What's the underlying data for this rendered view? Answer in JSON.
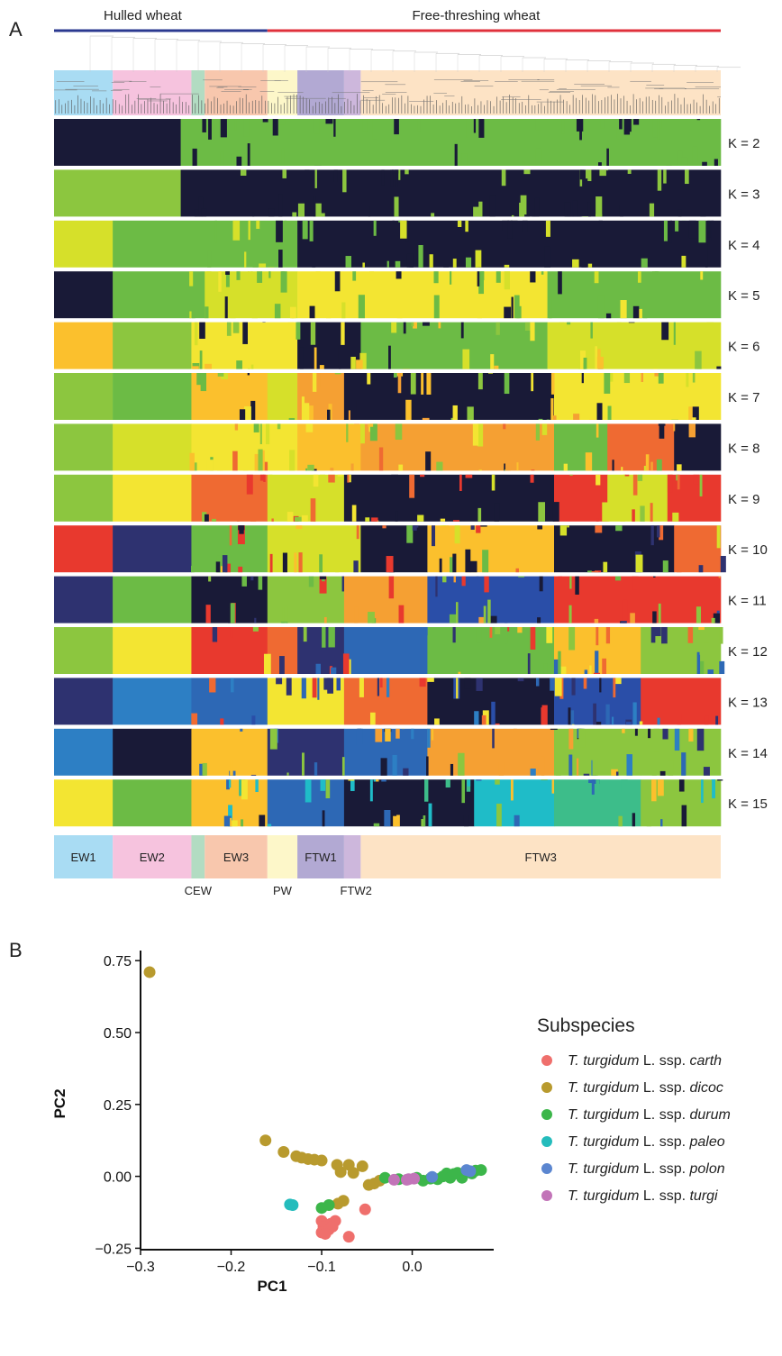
{
  "panel_a": {
    "label": "A",
    "groups": [
      {
        "label": "Hulled wheat",
        "color": "#2b3990",
        "start": 0.0,
        "end": 0.32
      },
      {
        "label": "Free-threshing wheat",
        "color": "#e0313c",
        "start": 0.32,
        "end": 1.0
      }
    ],
    "clusters": [
      {
        "label": "EW1",
        "start": 0.0,
        "end": 0.088,
        "color": "#a9dcf3",
        "label_below": false
      },
      {
        "label": "EW2",
        "start": 0.088,
        "end": 0.206,
        "color": "#f6c3de",
        "label_below": false
      },
      {
        "label": "CEW",
        "start": 0.206,
        "end": 0.226,
        "color": "#b2dcc2",
        "label_below": true
      },
      {
        "label": "EW3",
        "start": 0.226,
        "end": 0.32,
        "color": "#f8c7ad",
        "label_below": false
      },
      {
        "label": "PW",
        "start": 0.32,
        "end": 0.365,
        "color": "#fdf7c9",
        "label_below": true
      },
      {
        "label": "FTW1",
        "start": 0.365,
        "end": 0.435,
        "color": "#b2a9d3",
        "label_below": false
      },
      {
        "label": "FTW2",
        "start": 0.435,
        "end": 0.46,
        "color": "#cdb7dc",
        "label_below": true
      },
      {
        "label": "FTW3",
        "start": 0.46,
        "end": 1.0,
        "color": "#fde3c5",
        "label_below": false
      }
    ],
    "structure": [
      {
        "k": "K = 2",
        "segments": [
          [
            0.0,
            0.19,
            "#191a37"
          ],
          [
            0.19,
            1.0,
            "#6cbb45"
          ]
        ]
      },
      {
        "k": "K = 3",
        "segments": [
          [
            0.0,
            0.19,
            "#8cc63f"
          ],
          [
            0.19,
            1.0,
            "#191a37"
          ]
        ]
      },
      {
        "k": "K = 4",
        "segments": [
          [
            0.0,
            0.088,
            "#d6e02a"
          ],
          [
            0.088,
            0.365,
            "#6cbb45"
          ],
          [
            0.365,
            1.0,
            "#191a37"
          ]
        ]
      },
      {
        "k": "K = 5",
        "segments": [
          [
            0.0,
            0.088,
            "#191a37"
          ],
          [
            0.088,
            0.226,
            "#6cbb45"
          ],
          [
            0.226,
            0.365,
            "#d6e02a"
          ],
          [
            0.365,
            0.74,
            "#f3e532"
          ],
          [
            0.74,
            1.0,
            "#6cbb45"
          ]
        ]
      },
      {
        "k": "K = 6",
        "segments": [
          [
            0.0,
            0.088,
            "#fbc02d"
          ],
          [
            0.088,
            0.206,
            "#8cc63f"
          ],
          [
            0.206,
            0.365,
            "#f3e532"
          ],
          [
            0.365,
            0.46,
            "#191a37"
          ],
          [
            0.46,
            0.74,
            "#6cbb45"
          ],
          [
            0.74,
            1.0,
            "#d6e02a"
          ]
        ]
      },
      {
        "k": "K = 7",
        "segments": [
          [
            0.0,
            0.088,
            "#8cc63f"
          ],
          [
            0.088,
            0.206,
            "#6cbb45"
          ],
          [
            0.206,
            0.32,
            "#fbc02d"
          ],
          [
            0.32,
            0.365,
            "#d6e02a"
          ],
          [
            0.365,
            0.435,
            "#f5a033"
          ],
          [
            0.435,
            0.75,
            "#191a37"
          ],
          [
            0.75,
            1.0,
            "#f3e532"
          ]
        ]
      },
      {
        "k": "K = 8",
        "segments": [
          [
            0.0,
            0.088,
            "#8cc63f"
          ],
          [
            0.088,
            0.206,
            "#d6e02a"
          ],
          [
            0.206,
            0.365,
            "#f3e532"
          ],
          [
            0.365,
            0.46,
            "#fbc02d"
          ],
          [
            0.46,
            0.75,
            "#f5a033"
          ],
          [
            0.75,
            0.83,
            "#6cbb45"
          ],
          [
            0.83,
            0.93,
            "#ef6a32"
          ],
          [
            0.93,
            1.0,
            "#191a37"
          ]
        ]
      },
      {
        "k": "K = 9",
        "segments": [
          [
            0.0,
            0.088,
            "#8cc63f"
          ],
          [
            0.088,
            0.206,
            "#f3e532"
          ],
          [
            0.206,
            0.32,
            "#ef6a32"
          ],
          [
            0.32,
            0.435,
            "#d6e02a"
          ],
          [
            0.435,
            0.75,
            "#191a37"
          ],
          [
            0.75,
            0.83,
            "#e8392e"
          ],
          [
            0.83,
            0.92,
            "#d6e02a"
          ],
          [
            0.92,
            1.0,
            "#e8392e"
          ]
        ]
      },
      {
        "k": "K = 10",
        "segments": [
          [
            0.0,
            0.088,
            "#e8392e"
          ],
          [
            0.088,
            0.206,
            "#2e3270"
          ],
          [
            0.206,
            0.32,
            "#6cbb45"
          ],
          [
            0.32,
            0.46,
            "#d6e02a"
          ],
          [
            0.46,
            0.56,
            "#191a37"
          ],
          [
            0.56,
            0.75,
            "#fbc02d"
          ],
          [
            0.75,
            0.93,
            "#191a37"
          ],
          [
            0.93,
            1.0,
            "#ef6a32"
          ]
        ]
      },
      {
        "k": "K = 11",
        "segments": [
          [
            0.0,
            0.088,
            "#2e3270"
          ],
          [
            0.088,
            0.206,
            "#6cbb45"
          ],
          [
            0.206,
            0.32,
            "#191a37"
          ],
          [
            0.32,
            0.435,
            "#8cc63f"
          ],
          [
            0.435,
            0.56,
            "#f5a033"
          ],
          [
            0.56,
            0.75,
            "#2a4ea8"
          ],
          [
            0.75,
            0.88,
            "#e8392e"
          ],
          [
            0.88,
            1.0,
            "#e8392e"
          ]
        ]
      },
      {
        "k": "K = 12",
        "segments": [
          [
            0.0,
            0.088,
            "#8cc63f"
          ],
          [
            0.088,
            0.206,
            "#f3e532"
          ],
          [
            0.206,
            0.32,
            "#e8392e"
          ],
          [
            0.32,
            0.365,
            "#ef6a32"
          ],
          [
            0.365,
            0.435,
            "#2e3270"
          ],
          [
            0.435,
            0.56,
            "#2d68b5"
          ],
          [
            0.56,
            0.75,
            "#6cbb45"
          ],
          [
            0.75,
            0.88,
            "#fbc02d"
          ],
          [
            0.88,
            1.0,
            "#8cc63f"
          ]
        ]
      },
      {
        "k": "K = 13",
        "segments": [
          [
            0.0,
            0.088,
            "#2e3270"
          ],
          [
            0.088,
            0.206,
            "#2d7fc4"
          ],
          [
            0.206,
            0.32,
            "#2d68b5"
          ],
          [
            0.32,
            0.435,
            "#f3e532"
          ],
          [
            0.435,
            0.56,
            "#ef6a32"
          ],
          [
            0.56,
            0.75,
            "#191a37"
          ],
          [
            0.75,
            0.88,
            "#2a4ea8"
          ],
          [
            0.88,
            1.0,
            "#e8392e"
          ]
        ]
      },
      {
        "k": "K = 14",
        "segments": [
          [
            0.0,
            0.088,
            "#2d7fc4"
          ],
          [
            0.088,
            0.206,
            "#191a37"
          ],
          [
            0.206,
            0.32,
            "#fbc02d"
          ],
          [
            0.32,
            0.435,
            "#2e3270"
          ],
          [
            0.435,
            0.56,
            "#2d68b5"
          ],
          [
            0.56,
            0.75,
            "#f5a033"
          ],
          [
            0.75,
            0.88,
            "#8cc63f"
          ],
          [
            0.88,
            1.0,
            "#8cc63f"
          ]
        ]
      },
      {
        "k": "K = 15",
        "segments": [
          [
            0.0,
            0.088,
            "#f3e532"
          ],
          [
            0.088,
            0.206,
            "#6cbb45"
          ],
          [
            0.206,
            0.32,
            "#fbc02d"
          ],
          [
            0.32,
            0.435,
            "#2d68b5"
          ],
          [
            0.435,
            0.63,
            "#191a37"
          ],
          [
            0.63,
            0.75,
            "#1fbcc8"
          ],
          [
            0.75,
            0.88,
            "#3dbd8a"
          ],
          [
            0.88,
            1.0,
            "#8cc63f"
          ]
        ]
      }
    ]
  },
  "chart_data": {
    "type": "scatter",
    "panel_label": "B",
    "xlabel": "PC1",
    "ylabel": "PC2",
    "xlim": [
      -0.3,
      0.09
    ],
    "ylim": [
      -0.255,
      0.76
    ],
    "xticks": [
      -0.3,
      -0.2,
      -0.1,
      0.0
    ],
    "xtick_labels": [
      "−0.3",
      "−0.2",
      "−0.1",
      "0.0"
    ],
    "yticks": [
      -0.25,
      0.0,
      0.25,
      0.5,
      0.75
    ],
    "ytick_labels": [
      "−0.25",
      "0.00",
      "0.25",
      "0.50",
      "0.75"
    ],
    "legend_title": "Subspecies",
    "legend_placement": "right",
    "series": [
      {
        "name_prefix": "T. turgidum",
        "name_mid": " L. ssp. ",
        "name_suffix": "carth",
        "color": "#ef6f6c",
        "points": [
          [
            -0.1,
            -0.155
          ],
          [
            -0.09,
            -0.165
          ],
          [
            -0.085,
            -0.155
          ],
          [
            -0.098,
            -0.175
          ],
          [
            -0.092,
            -0.185
          ],
          [
            -0.1,
            -0.195
          ],
          [
            -0.088,
            -0.175
          ],
          [
            -0.07,
            -0.21
          ],
          [
            -0.052,
            -0.115
          ],
          [
            -0.096,
            -0.2
          ]
        ]
      },
      {
        "name_prefix": "T. turgidum",
        "name_mid": " L. ssp. ",
        "name_suffix": "dicoc",
        "color": "#b89a2e",
        "points": [
          [
            -0.29,
            0.71
          ],
          [
            -0.162,
            0.125
          ],
          [
            -0.142,
            0.085
          ],
          [
            -0.128,
            0.07
          ],
          [
            -0.122,
            0.065
          ],
          [
            -0.115,
            0.06
          ],
          [
            -0.108,
            0.058
          ],
          [
            -0.1,
            0.055
          ],
          [
            -0.083,
            0.04
          ],
          [
            -0.07,
            0.04
          ],
          [
            -0.055,
            0.035
          ],
          [
            -0.079,
            0.015
          ],
          [
            -0.065,
            0.012
          ],
          [
            -0.048,
            -0.03
          ],
          [
            -0.042,
            -0.025
          ],
          [
            -0.036,
            -0.015
          ],
          [
            -0.076,
            -0.085
          ],
          [
            -0.082,
            -0.095
          ]
        ]
      },
      {
        "name_prefix": "T. turgidum",
        "name_mid": " L. ssp. ",
        "name_suffix": "durum",
        "color": "#3cb64a",
        "points": [
          [
            -0.1,
            -0.11
          ],
          [
            -0.092,
            -0.1
          ],
          [
            -0.03,
            -0.005
          ],
          [
            -0.015,
            -0.01
          ],
          [
            0.005,
            -0.005
          ],
          [
            0.012,
            -0.015
          ],
          [
            0.02,
            -0.008
          ],
          [
            0.028,
            -0.01
          ],
          [
            0.034,
            0.0
          ],
          [
            0.038,
            0.01
          ],
          [
            0.042,
            -0.005
          ],
          [
            0.046,
            0.008
          ],
          [
            0.05,
            0.012
          ],
          [
            0.055,
            -0.005
          ],
          [
            0.06,
            0.015
          ],
          [
            0.066,
            0.01
          ],
          [
            0.07,
            0.02
          ],
          [
            0.076,
            0.022
          ]
        ]
      },
      {
        "name_prefix": "T. turgidum",
        "name_mid": " L. ssp. ",
        "name_suffix": "paleo",
        "color": "#24bcbc",
        "points": [
          [
            -0.135,
            -0.098
          ],
          [
            -0.132,
            -0.1
          ]
        ]
      },
      {
        "name_prefix": "T. turgidum",
        "name_mid": " L. ssp. ",
        "name_suffix": "polon",
        "color": "#5b86d0",
        "points": [
          [
            0.022,
            -0.002
          ],
          [
            0.06,
            0.022
          ],
          [
            0.064,
            0.018
          ]
        ]
      },
      {
        "name_prefix": "T. turgidum",
        "name_mid": " L. ssp. ",
        "name_suffix": "turgi",
        "color": "#c274b8",
        "points": [
          [
            -0.02,
            -0.012
          ],
          [
            -0.004,
            -0.01
          ],
          [
            0.002,
            -0.008
          ],
          [
            -0.006,
            -0.012
          ]
        ]
      }
    ]
  }
}
